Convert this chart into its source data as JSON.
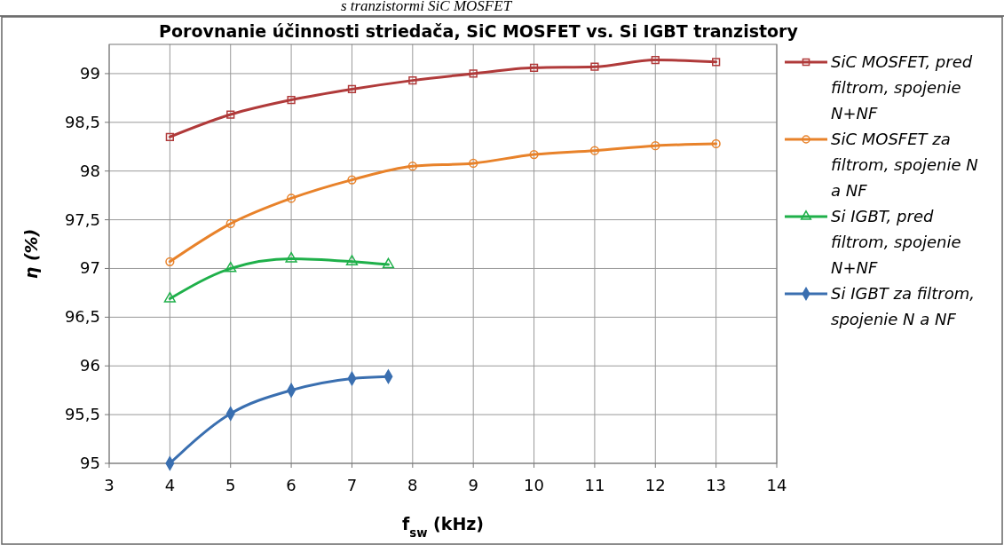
{
  "chart_data": {
    "type": "line",
    "title": "Porovnanie účinnosti striedača, SiC MOSFET vs. Si IGBT tranzistory",
    "annotations": [
      "s tranzistormi SiC MOSFET"
    ],
    "xlabel": "f$_{sw}$ (kHz)",
    "ylabel": "η (%)",
    "xlim": [
      3,
      14
    ],
    "xticks": [
      3,
      4,
      5,
      6,
      7,
      8,
      9,
      10,
      11,
      12,
      13,
      14
    ],
    "ylim": [
      95,
      99.3
    ],
    "yticks": [
      95,
      {
        "value": 95.5,
        "label": "95,5"
      },
      96,
      {
        "value": 96.5,
        "label": "96,5"
      },
      97,
      {
        "value": 97.5,
        "label": "97,5"
      },
      98,
      {
        "value": 98.5,
        "label": "98,5"
      },
      99
    ],
    "grid": true,
    "legend": "right",
    "series": [
      {
        "name": "SiC MOSFET, pred filtrom, spojenie N+NF",
        "color": "#b03a3a",
        "marker": "square",
        "x": [
          4,
          5,
          6,
          7,
          8,
          9,
          10,
          11,
          12,
          13
        ],
        "values": [
          98.35,
          98.58,
          98.73,
          98.84,
          98.93,
          99.0,
          99.06,
          99.07,
          99.14,
          99.12
        ]
      },
      {
        "name": "SiC MOSFET za filtrom, spojenie N a NF",
        "color": "#e8822a",
        "marker": "circle",
        "x": [
          4,
          5,
          6,
          7,
          8,
          9,
          10,
          11,
          12,
          13
        ],
        "values": [
          97.07,
          97.46,
          97.72,
          97.91,
          98.05,
          98.08,
          98.17,
          98.21,
          98.26,
          98.28
        ]
      },
      {
        "name": "Si IGBT, pred filtrom, spojenie N+NF",
        "color": "#1fb04a",
        "marker": "triangle",
        "x": [
          4,
          5,
          6,
          7,
          7.6
        ],
        "values": [
          96.69,
          97.0,
          97.1,
          97.07,
          97.04
        ]
      },
      {
        "name": "Si IGBT za filtrom, spojenie N a NF",
        "color": "#3a6fb0",
        "marker": "diamond",
        "x": [
          4,
          5,
          6,
          7,
          7.6
        ],
        "values": [
          95.0,
          95.51,
          95.75,
          95.87,
          95.89
        ]
      }
    ]
  }
}
